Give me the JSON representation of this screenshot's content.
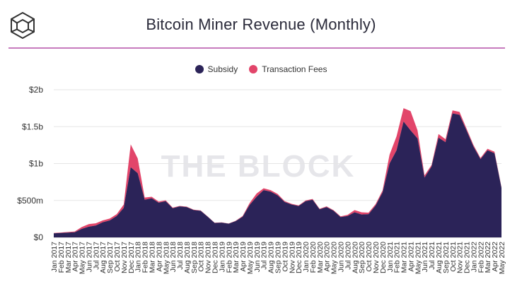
{
  "header": {
    "title": "Bitcoin Miner Revenue (Monthly)",
    "watermark": "THE BLOCK"
  },
  "colors": {
    "subsidy": "#2b2358",
    "fees": "#e2456a",
    "divider": "#c77bbd"
  },
  "chart_data": {
    "type": "area",
    "title": "Bitcoin Miner Revenue (Monthly)",
    "legend_position": "top",
    "grid": true,
    "y_tick_labels": [
      "$0",
      "$500m",
      "$1b",
      "$1.5b",
      "$2b"
    ],
    "y_tick_values": [
      0,
      500,
      1000,
      1500,
      2000
    ],
    "ylim": [
      0,
      2000
    ],
    "y_unit": "USD millions",
    "categories": [
      "Jan 2017",
      "Feb 2017",
      "Mar 2017",
      "Apr 2017",
      "May 2017",
      "Jun 2017",
      "Jul 2017",
      "Aug 2017",
      "Sep 2017",
      "Oct 2017",
      "Nov 2017",
      "Dec 2017",
      "Jan 2018",
      "Feb 2018",
      "Mar 2018",
      "Apr 2018",
      "May 2018",
      "Jun 2018",
      "Jul 2018",
      "Aug 2018",
      "Sep 2018",
      "Oct 2018",
      "Nov 2018",
      "Dec 2018",
      "Jan 2019",
      "Feb 2019",
      "Mar 2019",
      "Apr 2019",
      "May 2019",
      "Jun 2019",
      "Jul 2019",
      "Aug 2019",
      "Sep 2019",
      "Oct 2019",
      "Nov 2019",
      "Dec 2019",
      "Jan 2020",
      "Feb 2020",
      "Mar 2020",
      "Apr 2020",
      "May 2020",
      "Jun 2020",
      "Jul 2020",
      "Aug 2020",
      "Sep 2020",
      "Oct 2020",
      "Nov 2020",
      "Dec 2020",
      "Jan 2021",
      "Feb 2021",
      "Mar 2021",
      "Apr 2021",
      "May 2021",
      "Jun 2021",
      "Jul 2021",
      "Aug 2021",
      "Sep 2021",
      "Oct 2021",
      "Nov 2021",
      "Dec 2021",
      "Jan 2022",
      "Feb 2022",
      "Mar 2022",
      "Apr 2022",
      "May 2022"
    ],
    "series": [
      {
        "name": "Subsidy",
        "values": [
          55,
          60,
          65,
          70,
          115,
          145,
          160,
          205,
          230,
          290,
          400,
          950,
          870,
          510,
          530,
          470,
          490,
          395,
          420,
          410,
          370,
          360,
          280,
          195,
          200,
          185,
          220,
          280,
          440,
          550,
          640,
          620,
          570,
          480,
          445,
          425,
          490,
          510,
          380,
          410,
          360,
          275,
          290,
          340,
          310,
          315,
          430,
          610,
          1000,
          1180,
          1570,
          1450,
          1340,
          810,
          960,
          1350,
          1290,
          1680,
          1660,
          1450,
          1230,
          1060,
          1180,
          1140,
          670
        ]
      },
      {
        "name": "Transaction Fees",
        "values": [
          5,
          6,
          8,
          10,
          25,
          35,
          30,
          25,
          25,
          25,
          45,
          310,
          200,
          30,
          20,
          15,
          12,
          8,
          6,
          6,
          5,
          5,
          4,
          3,
          3,
          3,
          5,
          10,
          25,
          45,
          25,
          20,
          18,
          12,
          10,
          8,
          10,
          10,
          8,
          10,
          8,
          10,
          15,
          30,
          30,
          20,
          20,
          25,
          120,
          190,
          180,
          260,
          110,
          30,
          20,
          50,
          40,
          40,
          40,
          25,
          20,
          15,
          20,
          20,
          10
        ]
      }
    ]
  }
}
